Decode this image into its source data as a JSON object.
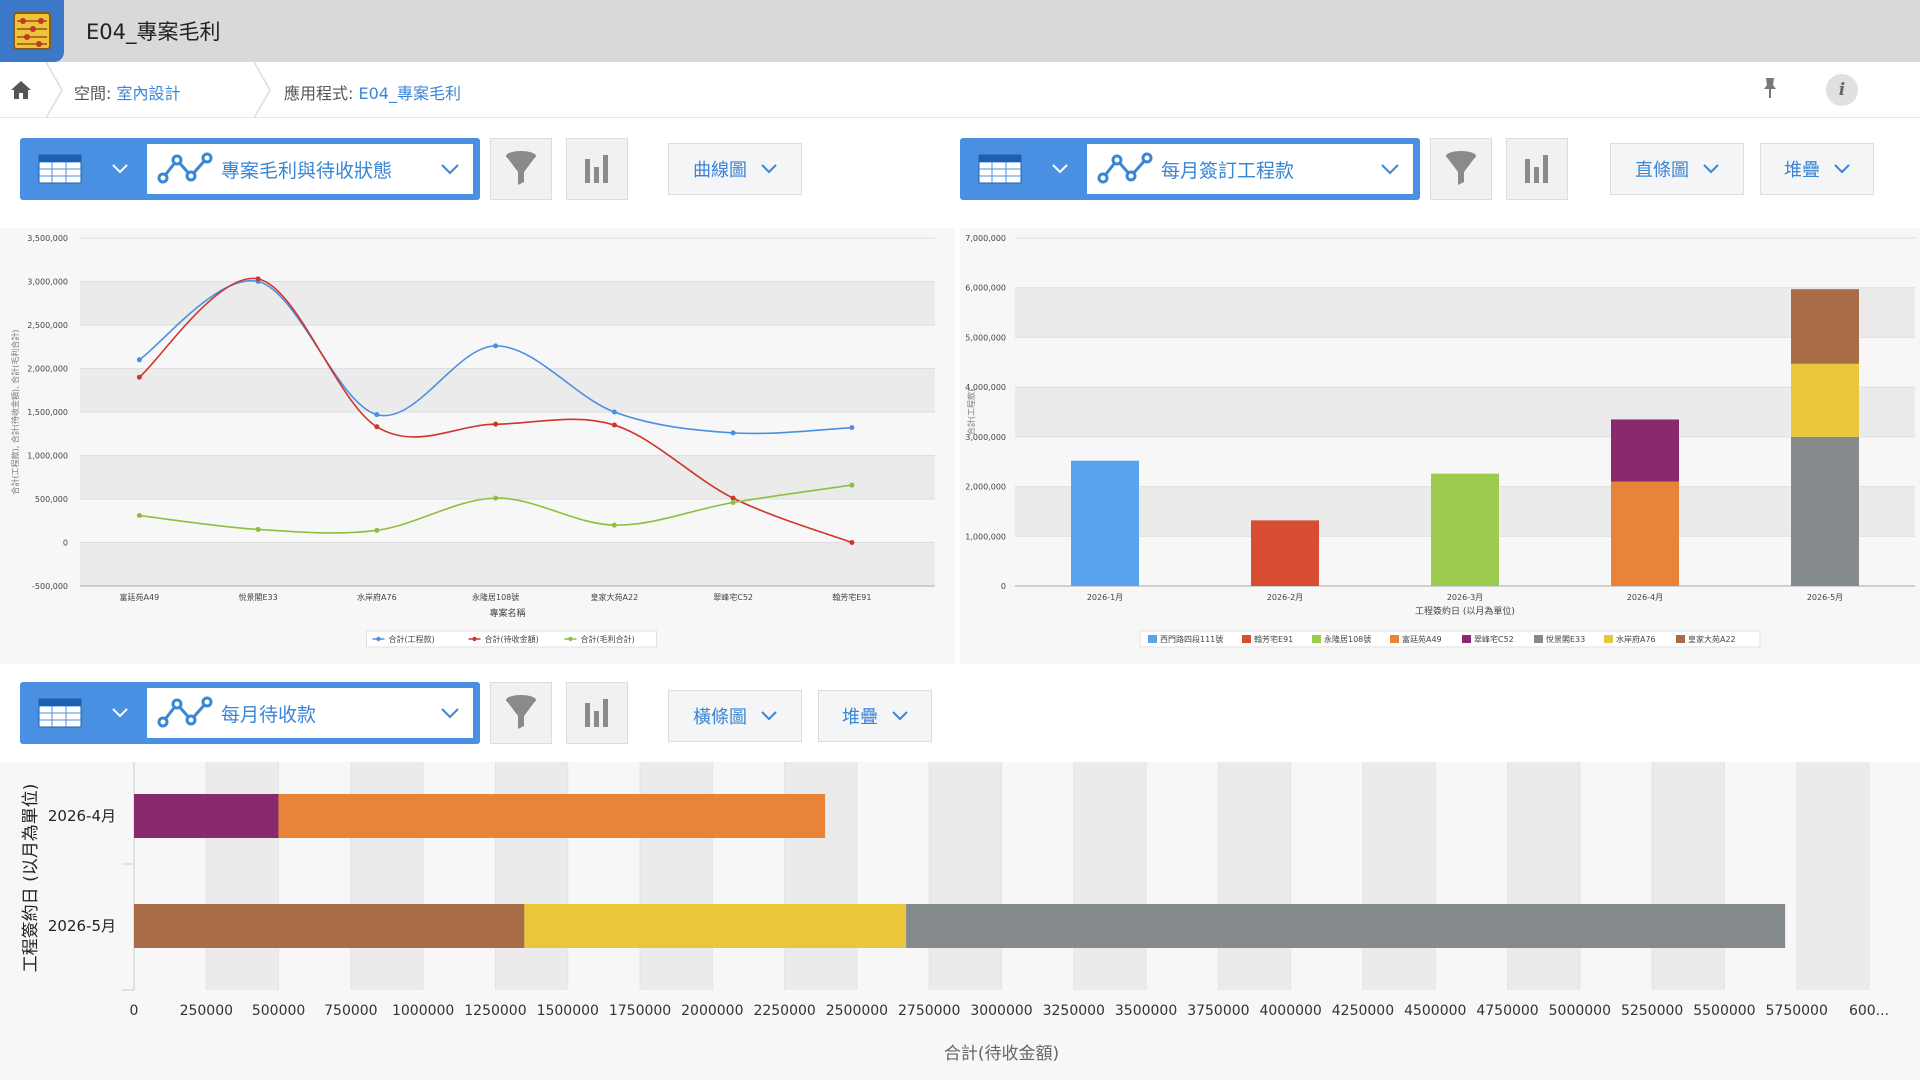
{
  "app": {
    "title": "E04_專案毛利"
  },
  "breadcrumb": {
    "space_label": "空間: ",
    "space_value": "室內設計",
    "app_label": "應用程式: ",
    "app_value": "E04_專案毛利"
  },
  "toolbars": [
    {
      "view": "專案毛利與待收狀態",
      "type_label": "曲線圖"
    },
    {
      "view": "每月簽訂工程款",
      "type_label": "直條圖",
      "stack_label": "堆疊"
    },
    {
      "view": "每月待收款",
      "type_label": "橫條圖",
      "stack_label": "堆疊"
    }
  ],
  "colors": {
    "primary": "#4a90e2",
    "link": "#3a86d6"
  },
  "chart_data": [
    {
      "type": "line",
      "title": "",
      "xlabel": "專案名稱",
      "ylabel": "合計(工程款), 合計(待收金額), 合計(毛利合計)",
      "categories": [
        "富廷苑A49",
        "悅景閣E33",
        "水岸府A76",
        "永隆居108號",
        "皇家大苑A22",
        "翠峰宅C52",
        "翰芳宅E91"
      ],
      "ylim": [
        -500000,
        3500000
      ],
      "yticks": [
        "-500,000",
        "0",
        "500,000",
        "1,000,000",
        "1,500,000",
        "2,000,000",
        "2,500,000",
        "3,000,000",
        "3,500,000"
      ],
      "series": [
        {
          "name": "合計(工程款)",
          "color": "#4a90e2",
          "values": [
            2100000,
            3000000,
            1470000,
            2260000,
            1500000,
            1260000,
            1320000
          ]
        },
        {
          "name": "合計(待收金額)",
          "color": "#d0342c",
          "values": [
            1900000,
            3030000,
            1330000,
            1360000,
            1350000,
            510000,
            0
          ]
        },
        {
          "name": "合計(毛利合計)",
          "color": "#8cbf3f",
          "values": [
            310000,
            150000,
            140000,
            510000,
            200000,
            460000,
            660000
          ]
        }
      ]
    },
    {
      "type": "bar",
      "stacked": true,
      "title": "",
      "xlabel": "工程簽約日 (以月為單位)",
      "ylabel": "合計(工程款)",
      "categories": [
        "2026-1月",
        "2026-2月",
        "2026-3月",
        "2026-4月",
        "2026-5月"
      ],
      "ylim": [
        0,
        7000000
      ],
      "yticks": [
        "0",
        "1,000,000",
        "2,000,000",
        "3,000,000",
        "4,000,000",
        "5,000,000",
        "6,000,000",
        "7,000,000"
      ],
      "series": [
        {
          "name": "西門路四段111號",
          "color": "#5aa4ee",
          "values": [
            2520000,
            0,
            0,
            0,
            0
          ]
        },
        {
          "name": "翰芳宅E91",
          "color": "#d64d32",
          "values": [
            0,
            1320000,
            0,
            0,
            0
          ]
        },
        {
          "name": "永隆居108號",
          "color": "#9ccb50",
          "values": [
            0,
            0,
            2260000,
            0,
            0
          ]
        },
        {
          "name": "富廷苑A49",
          "color": "#e8843a",
          "values": [
            0,
            0,
            0,
            2100000,
            0
          ]
        },
        {
          "name": "翠峰宅C52",
          "color": "#8a2a6e",
          "values": [
            0,
            0,
            0,
            1250000,
            0
          ]
        },
        {
          "name": "悅景閣E33",
          "color": "#858a8d",
          "values": [
            0,
            0,
            0,
            0,
            3000000
          ]
        },
        {
          "name": "水岸府A76",
          "color": "#eac63a",
          "values": [
            0,
            0,
            0,
            0,
            1470000
          ]
        },
        {
          "name": "皇家大苑A22",
          "color": "#a86d47",
          "values": [
            0,
            0,
            0,
            0,
            1500000
          ]
        }
      ]
    },
    {
      "type": "bar",
      "orientation": "horizontal",
      "stacked": true,
      "title": "",
      "xlabel": "合計(待收金額)",
      "ylabel": "工程簽約日 (以月為單位)",
      "categories": [
        "2026-4月",
        "2026-5月"
      ],
      "xticks": [
        "0",
        "250000",
        "500000",
        "750000",
        "1000000",
        "1250000",
        "1500000",
        "1750000",
        "2000000",
        "2250000",
        "2500000",
        "2750000",
        "3000000",
        "3250000",
        "3500000",
        "3750000",
        "4000000",
        "4250000",
        "4500000",
        "4750000",
        "5000000",
        "5250000",
        "5500000",
        "5750000",
        "600..."
      ],
      "xlim": [
        0,
        6000000
      ],
      "series": [
        {
          "name": "翠峰宅C52",
          "color": "#8a2a6e",
          "values": [
            500000,
            0
          ]
        },
        {
          "name": "富廷苑A49",
          "color": "#e8843a",
          "values": [
            1890000,
            0
          ]
        },
        {
          "name": "皇家大苑A22",
          "color": "#a86d47",
          "values": [
            0,
            1350000
          ]
        },
        {
          "name": "水岸府A76",
          "color": "#eac63a",
          "values": [
            0,
            1320000
          ]
        },
        {
          "name": "悅景閣E33",
          "color": "#858a8d",
          "values": [
            0,
            3040000
          ]
        }
      ]
    }
  ]
}
